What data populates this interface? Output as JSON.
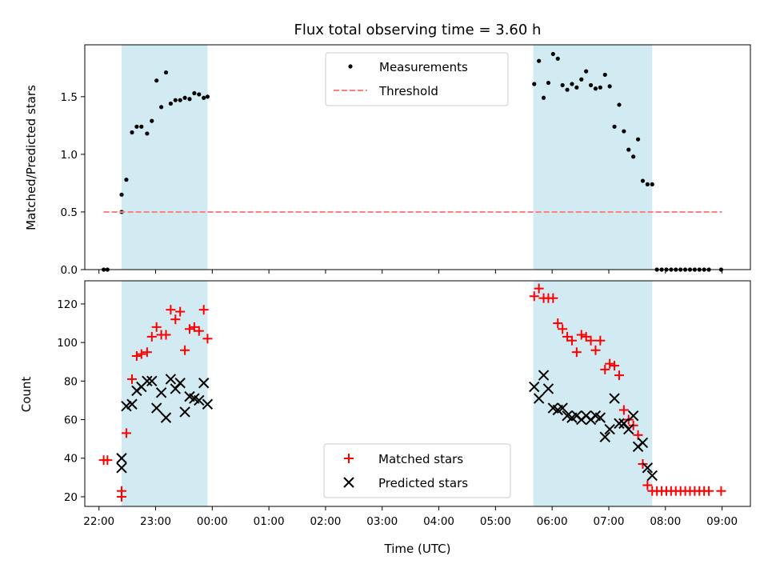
{
  "chart_data": {
    "title": "Flux total observing time = 3.60 h",
    "xlabel": "Time (UTC)",
    "xlim": [
      "21:45",
      "09:30"
    ],
    "x_ticks": [
      "22:00",
      "23:00",
      "00:00",
      "01:00",
      "02:00",
      "03:00",
      "04:00",
      "05:00",
      "06:00",
      "07:00",
      "08:00",
      "09:00"
    ],
    "colors": {
      "shade": "#add8e6",
      "measurements": "#000000",
      "threshold": "#ff7f7f",
      "matched": "#ff0000",
      "predicted": "#000000"
    },
    "observing_windows": [
      [
        "22:24",
        "23:55"
      ],
      [
        "05:40",
        "07:46"
      ]
    ],
    "panels": [
      {
        "type": "scatter",
        "ylabel": "Matched/Predicted stars",
        "ylim": [
          0,
          1.95
        ],
        "y_ticks": [
          "0.0",
          "0.5",
          "1.0",
          "1.5"
        ],
        "grid": false,
        "legend_position": "top-center",
        "series": [
          {
            "name": "Measurements",
            "marker": "dot",
            "x": [
              "22:05",
              "22:09",
              "22:24",
              "22:24",
              "22:29",
              "22:35",
              "22:40",
              "22:45",
              "22:51",
              "22:56",
              "23:01",
              "23:06",
              "23:11",
              "23:16",
              "23:21",
              "23:26",
              "23:31",
              "23:36",
              "23:41",
              "23:46",
              "23:51",
              "23:55",
              "05:41",
              "05:46",
              "05:51",
              "05:56",
              "06:01",
              "06:06",
              "06:11",
              "06:16",
              "06:21",
              "06:26",
              "06:31",
              "06:36",
              "06:41",
              "06:46",
              "06:51",
              "06:56",
              "07:01",
              "07:06",
              "07:11",
              "07:16",
              "07:21",
              "07:26",
              "07:31",
              "07:36",
              "07:41",
              "07:46",
              "07:51",
              "07:56",
              "08:01",
              "08:06",
              "08:11",
              "08:16",
              "08:21",
              "08:26",
              "08:31",
              "08:36",
              "08:41",
              "08:46",
              "08:59"
            ],
            "y": [
              0,
              0,
              0.5,
              0.65,
              0.78,
              1.19,
              1.24,
              1.24,
              1.18,
              1.29,
              1.64,
              1.41,
              1.71,
              1.44,
              1.47,
              1.47,
              1.49,
              1.48,
              1.53,
              1.52,
              1.49,
              1.5,
              1.61,
              1.81,
              1.49,
              1.62,
              1.87,
              1.83,
              1.6,
              1.56,
              1.61,
              1.58,
              1.65,
              1.72,
              1.6,
              1.57,
              1.58,
              1.69,
              1.59,
              1.24,
              1.43,
              1.2,
              1.04,
              0.98,
              1.13,
              0.77,
              0.74,
              0.74,
              0,
              0,
              0,
              0,
              0,
              0,
              0,
              0,
              0,
              0,
              0,
              0,
              0
            ]
          },
          {
            "name": "Threshold",
            "marker": "dashed-line",
            "x": [
              "22:05",
              "09:00"
            ],
            "y": [
              0.5,
              0.5
            ]
          }
        ]
      },
      {
        "type": "scatter",
        "ylabel": "Count",
        "ylim": [
          15,
          132
        ],
        "y_ticks": [
          "20",
          "40",
          "60",
          "80",
          "100",
          "120"
        ],
        "grid": false,
        "legend_position": "bottom-center",
        "series": [
          {
            "name": "Matched stars",
            "marker": "plus",
            "x": [
              "22:05",
              "22:09",
              "22:24",
              "22:24",
              "22:29",
              "22:35",
              "22:40",
              "22:45",
              "22:51",
              "22:56",
              "23:01",
              "23:06",
              "23:11",
              "23:16",
              "23:21",
              "23:26",
              "23:31",
              "23:36",
              "23:41",
              "23:46",
              "23:51",
              "23:55",
              "05:41",
              "05:46",
              "05:51",
              "05:56",
              "06:01",
              "06:06",
              "06:11",
              "06:16",
              "06:21",
              "06:26",
              "06:31",
              "06:36",
              "06:41",
              "06:46",
              "06:51",
              "06:56",
              "07:01",
              "07:06",
              "07:11",
              "07:16",
              "07:21",
              "07:26",
              "07:31",
              "07:36",
              "07:41",
              "07:46",
              "07:51",
              "07:56",
              "08:01",
              "08:06",
              "08:11",
              "08:16",
              "08:21",
              "08:26",
              "08:31",
              "08:36",
              "08:41",
              "08:46",
              "08:59"
            ],
            "y": [
              39,
              39,
              23,
              20,
              53,
              81,
              93,
              94,
              95,
              103,
              108,
              104,
              104,
              117,
              112,
              116,
              96,
              107,
              108,
              106,
              117,
              102,
              124,
              128,
              123,
              123,
              123,
              110,
              107,
              103,
              101,
              95,
              104,
              103,
              101,
              96,
              101,
              86,
              89,
              88,
              83,
              65,
              60,
              57,
              52,
              37,
              26,
              23,
              23,
              23,
              23,
              23,
              23,
              23,
              23,
              23,
              23,
              23,
              23,
              23,
              23
            ]
          },
          {
            "name": "Predicted stars",
            "marker": "cross",
            "x": [
              "22:24",
              "22:24",
              "22:29",
              "22:35",
              "22:40",
              "22:45",
              "22:51",
              "22:56",
              "23:01",
              "23:06",
              "23:11",
              "23:16",
              "23:21",
              "23:26",
              "23:31",
              "23:36",
              "23:41",
              "23:46",
              "23:51",
              "23:55",
              "05:41",
              "05:46",
              "05:51",
              "05:56",
              "06:01",
              "06:06",
              "06:11",
              "06:16",
              "06:21",
              "06:26",
              "06:31",
              "06:36",
              "06:41",
              "06:46",
              "06:51",
              "06:56",
              "07:01",
              "07:06",
              "07:11",
              "07:16",
              "07:21",
              "07:26",
              "07:31",
              "07:36",
              "07:41",
              "07:46"
            ],
            "y": [
              40,
              35,
              67,
              68,
              75,
              77,
              80,
              80,
              66,
              74,
              61,
              81,
              76,
              79,
              64,
              72,
              71,
              70,
              79,
              68,
              77,
              71,
              83,
              76,
              66,
              65,
              66,
              62,
              61,
              62,
              60,
              62,
              60,
              62,
              61,
              51,
              55,
              71,
              58,
              58,
              55,
              62,
              46,
              48,
              35,
              31
            ]
          }
        ]
      }
    ]
  }
}
